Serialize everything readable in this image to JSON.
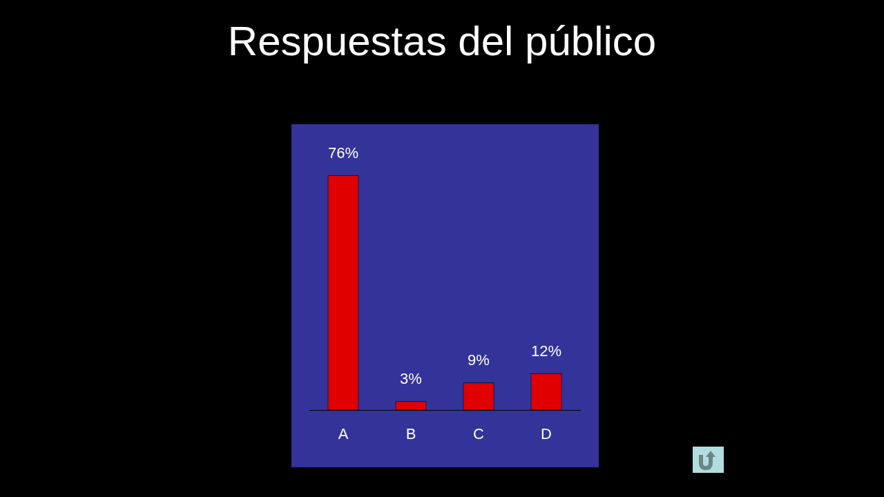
{
  "chart_data": {
    "type": "bar",
    "title": "Respuestas del público",
    "categories": [
      "A",
      "B",
      "C",
      "D"
    ],
    "values": [
      76,
      3,
      9,
      12
    ],
    "value_labels": [
      "76%",
      "3%",
      "9%",
      "12%"
    ],
    "color": "#e00000",
    "ylim": [
      0,
      92
    ],
    "tick_labels": "x"
  }
}
